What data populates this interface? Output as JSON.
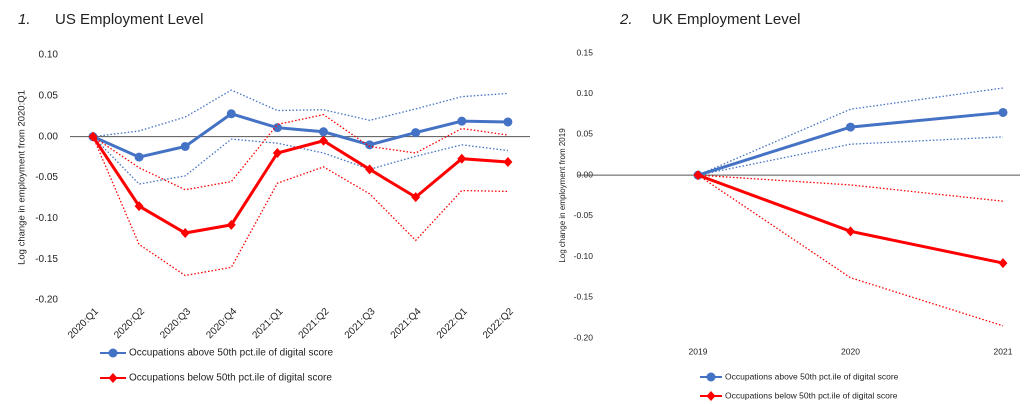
{
  "chart_data": [
    {
      "type": "line",
      "number": "1.",
      "title": "US Employment Level",
      "y_label": "Log change in employment from 2020:Q1",
      "categories": [
        "2020:Q1",
        "2020:Q2",
        "2020:Q3",
        "2020:Q4",
        "2021:Q1",
        "2021:Q2",
        "2021:Q3",
        "2021:Q4",
        "2022:Q1",
        "2022:Q2"
      ],
      "ylim": [
        -0.2,
        0.1
      ],
      "yticks": [
        {
          "value": -0.2,
          "label": "-0.20"
        },
        {
          "value": -0.15,
          "label": "-0.15"
        },
        {
          "value": -0.1,
          "label": "-0.10"
        },
        {
          "value": -0.05,
          "label": "-0.05"
        },
        {
          "value": 0,
          "label": "0.00"
        },
        {
          "value": 0.05,
          "label": "0.05"
        },
        {
          "value": 0.1,
          "label": "0.10"
        }
      ],
      "series": [
        {
          "name": "Occupations above 50th pct.ile of digital score",
          "color": "#4472c4",
          "marker": "circle",
          "values": [
            0,
            -0.025,
            -0.012,
            0.028,
            0.011,
            0.006,
            -0.01,
            0.005,
            0.019,
            0.018
          ],
          "upper": [
            0,
            0.007,
            0.024,
            0.057,
            0.032,
            0.033,
            0.02,
            0.034,
            0.049,
            0.053
          ],
          "lower": [
            0,
            -0.058,
            -0.048,
            -0.003,
            -0.008,
            -0.02,
            -0.04,
            -0.024,
            -0.01,
            -0.017
          ]
        },
        {
          "name": "Occupations below 50th pct.ile of digital score",
          "color": "#ff0000",
          "marker": "diamond",
          "values": [
            0,
            -0.085,
            -0.118,
            -0.108,
            -0.02,
            -0.005,
            -0.04,
            -0.074,
            -0.027,
            -0.031
          ],
          "upper": [
            0,
            -0.038,
            -0.065,
            -0.055,
            0.015,
            0.027,
            -0.012,
            -0.02,
            0.01,
            0.002
          ],
          "lower": [
            0,
            -0.132,
            -0.17,
            -0.16,
            -0.057,
            -0.037,
            -0.07,
            -0.127,
            -0.066,
            -0.067
          ]
        }
      ]
    },
    {
      "type": "line",
      "number": "2.",
      "title": "UK Employment Level",
      "y_label": "Log change in employment from 2019",
      "categories": [
        "2019",
        "2020",
        "2021"
      ],
      "ylim": [
        -0.2,
        0.15
      ],
      "yticks": [
        {
          "value": -0.2,
          "label": "-0.20"
        },
        {
          "value": -0.15,
          "label": "-0.15"
        },
        {
          "value": -0.1,
          "label": "-0.10"
        },
        {
          "value": -0.05,
          "label": "-0.05"
        },
        {
          "value": 0,
          "label": "0.00"
        },
        {
          "value": 0.05,
          "label": "0.05"
        },
        {
          "value": 0.1,
          "label": "0.10"
        },
        {
          "value": 0.15,
          "label": "0.15"
        }
      ],
      "series": [
        {
          "name": "Occupations above 50th pct.ile of digital score",
          "color": "#4472c4",
          "marker": "circle",
          "values": [
            0,
            0.059,
            0.077
          ],
          "upper": [
            0,
            0.081,
            0.107
          ],
          "lower": [
            0,
            0.038,
            0.047
          ]
        },
        {
          "name": "Occupations below 50th pct.ile of digital score",
          "color": "#ff0000",
          "marker": "diamond",
          "values": [
            0,
            -0.069,
            -0.108
          ],
          "upper": [
            0,
            -0.012,
            -0.032
          ],
          "lower": [
            0,
            -0.126,
            -0.185
          ]
        }
      ]
    }
  ]
}
